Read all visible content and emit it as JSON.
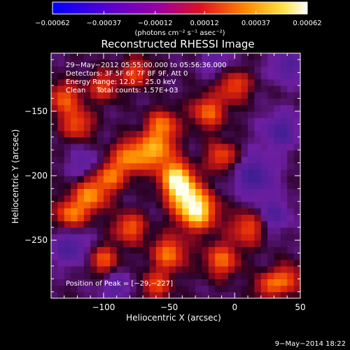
{
  "chart_data": {
    "type": "heatmap",
    "title": "Reconstructed RHESSI Image",
    "xlabel": "Heliocentric X (arcsec)",
    "ylabel": "Heliocentric Y (arcsec)",
    "xlim": [
      -140,
      50
    ],
    "ylim": [
      -295,
      -105
    ],
    "x_ticks": [
      -100,
      -50,
      0,
      50
    ],
    "y_ticks": [
      -150,
      -200,
      -250
    ],
    "x_tick_labels": [
      "−100",
      "−50",
      "0",
      "50"
    ],
    "y_tick_labels": [
      "−150",
      "−200",
      "−250"
    ],
    "colorbar": {
      "range": [
        -0.00062,
        0.00062
      ],
      "tick_values": [
        -0.00062,
        -0.00037,
        -0.00012,
        0.00012,
        0.00037,
        0.00062
      ],
      "tick_labels": [
        "−0.00062",
        "−0.00037",
        "−0.00012",
        "0.00012",
        "0.00037",
        "0.00062"
      ],
      "unit_label": "(photons cm⁻² s⁻¹ asec⁻²)"
    },
    "info_lines": [
      "29−May−2012 05:55:00.000 to 05:56:36.000",
      "Detectors: 3F 5F 6F 7F 8F 9F, Att 0",
      "Energy Range: 12.0 − 25.0 keV",
      "Clean     Total counts: 1.57E+03"
    ],
    "peak_label": "Position of Peak = [−29,−227]",
    "peak": [
      -29,
      -227
    ],
    "emission_sources": [
      {
        "x": -29,
        "y": -227,
        "amp": 1.0,
        "sigma": 10
      },
      {
        "x": -40,
        "y": -212,
        "amp": 0.8,
        "sigma": 9
      },
      {
        "x": -45,
        "y": -200,
        "amp": 0.75,
        "sigma": 8
      },
      {
        "x": -60,
        "y": -180,
        "amp": 0.7,
        "sigma": 10
      },
      {
        "x": -55,
        "y": -160,
        "amp": 0.55,
        "sigma": 8
      },
      {
        "x": -80,
        "y": -185,
        "amp": 0.6,
        "sigma": 9
      },
      {
        "x": -95,
        "y": -200,
        "amp": 0.55,
        "sigma": 8
      },
      {
        "x": -110,
        "y": -215,
        "amp": 0.65,
        "sigma": 9
      },
      {
        "x": -125,
        "y": -230,
        "amp": 0.6,
        "sigma": 8
      },
      {
        "x": -120,
        "y": -160,
        "amp": 0.5,
        "sigma": 8
      },
      {
        "x": -130,
        "y": -140,
        "amp": 0.5,
        "sigma": 9
      },
      {
        "x": -100,
        "y": -130,
        "amp": 0.45,
        "sigma": 8
      },
      {
        "x": -75,
        "y": -120,
        "amp": 0.45,
        "sigma": 8
      },
      {
        "x": -20,
        "y": -150,
        "amp": 0.55,
        "sigma": 9
      },
      {
        "x": -10,
        "y": -185,
        "amp": 0.5,
        "sigma": 8
      },
      {
        "x": 0,
        "y": -130,
        "amp": 0.5,
        "sigma": 8
      },
      {
        "x": 10,
        "y": -240,
        "amp": 0.5,
        "sigma": 9
      },
      {
        "x": -10,
        "y": -265,
        "amp": 0.55,
        "sigma": 9
      },
      {
        "x": -50,
        "y": -260,
        "amp": 0.6,
        "sigma": 9
      },
      {
        "x": -80,
        "y": -240,
        "amp": 0.55,
        "sigma": 8
      },
      {
        "x": -100,
        "y": -265,
        "amp": 0.5,
        "sigma": 8
      },
      {
        "x": -60,
        "y": -285,
        "amp": 0.45,
        "sigma": 8
      },
      {
        "x": 40,
        "y": -280,
        "amp": 0.5,
        "sigma": 8
      },
      {
        "x": 25,
        "y": -285,
        "amp": 0.45,
        "sigma": 7
      }
    ],
    "negative_sources": [
      {
        "x": 15,
        "y": -200,
        "amp": -0.45,
        "sigma": 11
      },
      {
        "x": 35,
        "y": -165,
        "amp": -0.4,
        "sigma": 10
      },
      {
        "x": 40,
        "y": -115,
        "amp": -0.35,
        "sigma": 9
      },
      {
        "x": -125,
        "y": -255,
        "amp": -0.4,
        "sigma": 10
      },
      {
        "x": -115,
        "y": -190,
        "amp": -0.3,
        "sigma": 8
      },
      {
        "x": 30,
        "y": -230,
        "amp": -0.35,
        "sigma": 9
      },
      {
        "x": -15,
        "y": -110,
        "amp": -0.25,
        "sigma": 8
      },
      {
        "x": -90,
        "y": -285,
        "amp": -0.3,
        "sigma": 9
      }
    ]
  },
  "footer": {
    "date": "9−May−2014 18:22"
  }
}
